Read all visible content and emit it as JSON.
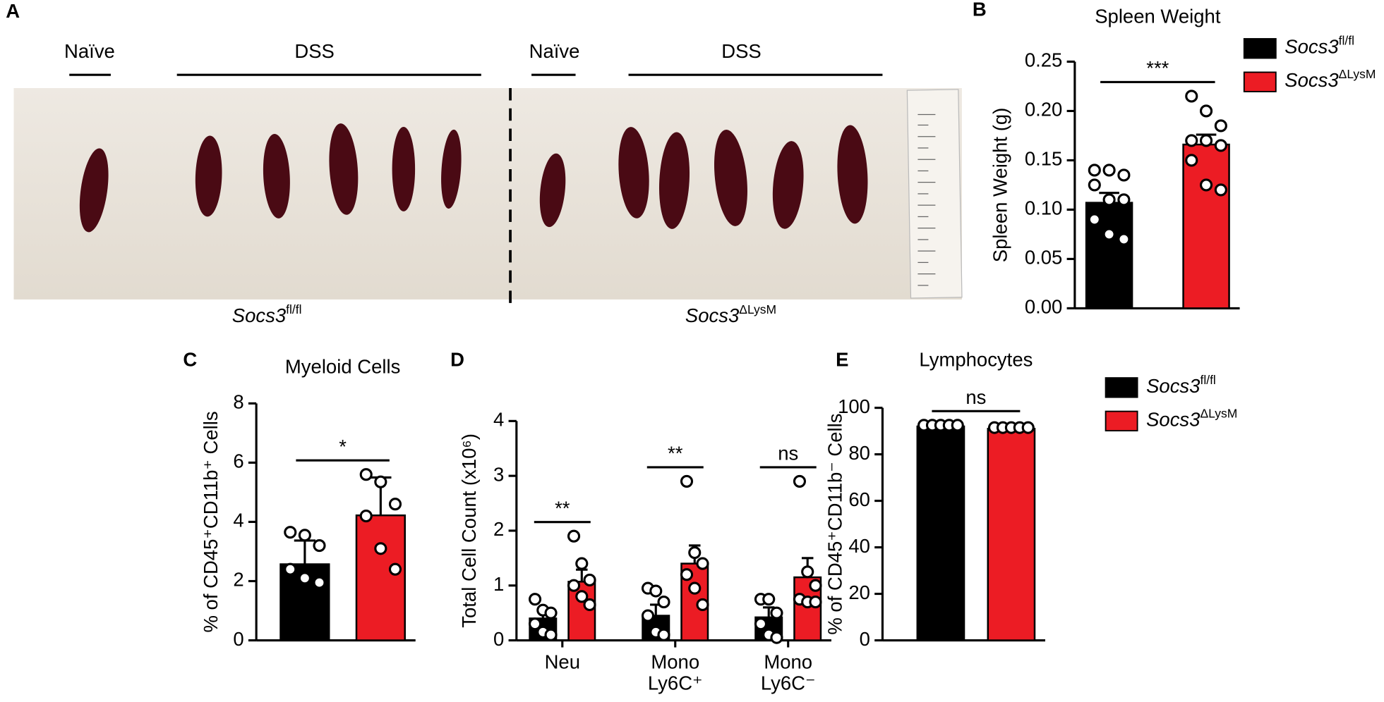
{
  "photo": {
    "panel": "A",
    "groups": [
      "Naïve",
      "DSS",
      "Naïve",
      "DSS"
    ],
    "genotypes": [
      {
        "text": "Socs3",
        "sup": "fl/fl"
      },
      {
        "text": "Socs3",
        "sup": "ΔLysM"
      }
    ]
  },
  "chart_data": [
    {
      "panel": "B",
      "type": "bar",
      "title": "Spleen Weight",
      "ylabel": "Spleen Weight (g)",
      "ylim": [
        0,
        0.25
      ],
      "yticks": [
        {
          "value": 0,
          "label": "0.00"
        },
        {
          "value": 0.05,
          "label": "0.05"
        },
        {
          "value": 0.1,
          "label": "0.10"
        },
        {
          "value": 0.15,
          "label": "0.15"
        },
        {
          "value": 0.2,
          "label": "0.20"
        },
        {
          "value": 0.25,
          "label": "0.25"
        }
      ],
      "legend": true,
      "series": [
        {
          "name": "Socs3",
          "name_sup": "fl/fl",
          "color": "#000000",
          "values": [
            0.107
          ],
          "errors": [
            0.01
          ],
          "points": [
            [
              0.14,
              0.14,
              0.135,
              0.125,
              0.11,
              0.11,
              0.09,
              0.075,
              0.07
            ]
          ]
        },
        {
          "name": "Socs3",
          "name_sup": "ΔLysM",
          "color": "#ec1c24",
          "values": [
            0.166
          ],
          "errors": [
            0.01
          ],
          "points": [
            [
              0.215,
              0.2,
              0.185,
              0.17,
              0.17,
              0.165,
              0.15,
              0.125,
              0.12
            ]
          ]
        }
      ],
      "annotations": [
        "***"
      ]
    },
    {
      "panel": "C",
      "type": "bar",
      "title": "Myeloid Cells",
      "ylabel": "% of CD45⁺CD11b⁺ Cells",
      "ylim": [
        0,
        8
      ],
      "yticks": [
        0,
        2,
        4,
        6,
        8
      ],
      "legend": false,
      "series": [
        {
          "color": "#000000",
          "values": [
            2.57
          ],
          "errors": [
            0.8
          ],
          "points": [
            [
              3.65,
              3.55,
              3.2,
              2.4,
              2.1,
              1.95
            ]
          ]
        },
        {
          "color": "#ec1c24",
          "values": [
            4.22
          ],
          "errors": [
            1.28
          ],
          "points": [
            [
              5.6,
              5.35,
              4.6,
              4.2,
              3.1,
              2.4
            ]
          ]
        }
      ],
      "annotations": [
        "*"
      ]
    },
    {
      "panel": "D",
      "type": "bar",
      "ylabel": "Total Cell Count (x10⁶)",
      "ylim": [
        0,
        4
      ],
      "yticks": [
        0,
        1,
        2,
        3,
        4
      ],
      "legend": false,
      "categories": [
        {
          "lines": [
            "Neu"
          ]
        },
        {
          "lines": [
            "Mono",
            "Ly6C⁺"
          ]
        },
        {
          "lines": [
            "Mono",
            "Ly6C⁻"
          ]
        }
      ],
      "series": [
        {
          "color": "#000000",
          "values": [
            0.4,
            0.45,
            0.42
          ],
          "errors": [
            0.12,
            0.2,
            0.18
          ],
          "points": [
            [
              0.75,
              0.55,
              0.5,
              0.3,
              0.15,
              0.1
            ],
            [
              0.95,
              0.9,
              0.7,
              0.45,
              0.15,
              0.1
            ],
            [
              0.75,
              0.75,
              0.5,
              0.3,
              0.1,
              0.05
            ]
          ]
        },
        {
          "color": "#ec1c24",
          "values": [
            1.07,
            1.4,
            1.15
          ],
          "errors": [
            0.22,
            0.33,
            0.35
          ],
          "points": [
            [
              1.9,
              1.4,
              1.1,
              1.0,
              0.8,
              0.65
            ],
            [
              2.9,
              1.6,
              1.4,
              1.2,
              0.95,
              0.65
            ],
            [
              2.9,
              1.25,
              1.0,
              0.75,
              0.7,
              0.7
            ]
          ]
        }
      ],
      "annotations": [
        "**",
        "**",
        "ns"
      ]
    },
    {
      "panel": "E",
      "type": "bar",
      "title": "Lymphocytes",
      "ylabel": "% of CD45⁺CD11b⁻ Cells",
      "ylim": [
        0,
        100
      ],
      "yticks": [
        0,
        20,
        40,
        60,
        80,
        100
      ],
      "legend": true,
      "series": [
        {
          "name": "Socs3",
          "name_sup": "fl/fl",
          "color": "#000000",
          "values": [
            92
          ],
          "errors": [
            0.5
          ],
          "points": [
            [
              92.5,
              92.5,
              92.5,
              92.5,
              92.5
            ]
          ]
        },
        {
          "name": "Socs3",
          "name_sup": "ΔLysM",
          "color": "#ec1c24",
          "values": [
            91
          ],
          "errors": [
            0.5
          ],
          "points": [
            [
              91.5,
              91.5,
              91.5,
              91.5,
              91.5
            ]
          ]
        }
      ],
      "annotations": [
        "ns"
      ]
    }
  ]
}
